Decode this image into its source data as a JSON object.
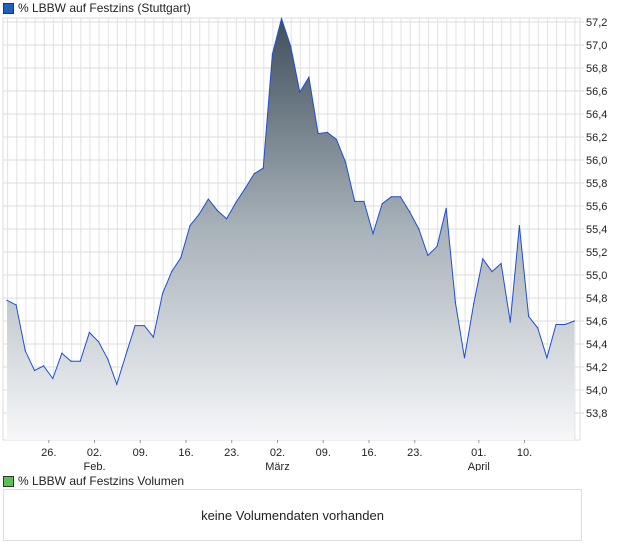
{
  "legend_price": {
    "label": "%  LBBW auf Festzins (Stuttgart)",
    "color": "#1f5fbf"
  },
  "legend_volume": {
    "label": "%  LBBW auf Festzins Volumen",
    "color": "#55c455"
  },
  "volume_message": "keine Volumendaten vorhanden",
  "chart_data": {
    "type": "area",
    "title": "%  LBBW auf Festzins (Stuttgart)",
    "ylim": [
      53.7,
      57.4
    ],
    "yticks": [
      "53,8",
      "54,0",
      "54,2",
      "54,4",
      "54,6",
      "54,8",
      "55,0",
      "55,2",
      "55,4",
      "55,6",
      "55,8",
      "56,0",
      "56,2",
      "56,4",
      "56,6",
      "56,8",
      "57,0",
      "57,2"
    ],
    "xticks": [
      {
        "label": "26.",
        "index": 5
      },
      {
        "label": "02.",
        "sub": "Feb.",
        "index": 10
      },
      {
        "label": "09.",
        "index": 15
      },
      {
        "label": "16.",
        "index": 20
      },
      {
        "label": "23.",
        "index": 25
      },
      {
        "label": "02.",
        "sub": "März",
        "index": 30
      },
      {
        "label": "09.",
        "index": 35
      },
      {
        "label": "16.",
        "index": 40
      },
      {
        "label": "23.",
        "index": 45
      },
      {
        "label": "01.",
        "sub": "April",
        "index": 52
      },
      {
        "label": "10.",
        "index": 57
      }
    ],
    "values": [
      54.78,
      54.74,
      54.34,
      54.17,
      54.21,
      54.1,
      54.32,
      54.25,
      54.25,
      54.5,
      54.42,
      54.27,
      54.05,
      54.31,
      54.56,
      54.56,
      54.46,
      54.84,
      55.03,
      55.15,
      55.43,
      55.53,
      55.66,
      55.56,
      55.49,
      55.63,
      55.75,
      55.88,
      55.93,
      56.92,
      57.23,
      56.99,
      56.59,
      56.72,
      56.23,
      56.24,
      56.18,
      55.98,
      55.64,
      55.64,
      55.36,
      55.62,
      55.68,
      55.68,
      55.55,
      55.4,
      55.17,
      55.25,
      55.58,
      54.76,
      54.28,
      54.75,
      55.14,
      55.03,
      55.1,
      54.59,
      55.43,
      54.64,
      54.54,
      54.28,
      54.57,
      54.57,
      54.6
    ],
    "line_color": "#1f4fd0",
    "grid": true
  }
}
